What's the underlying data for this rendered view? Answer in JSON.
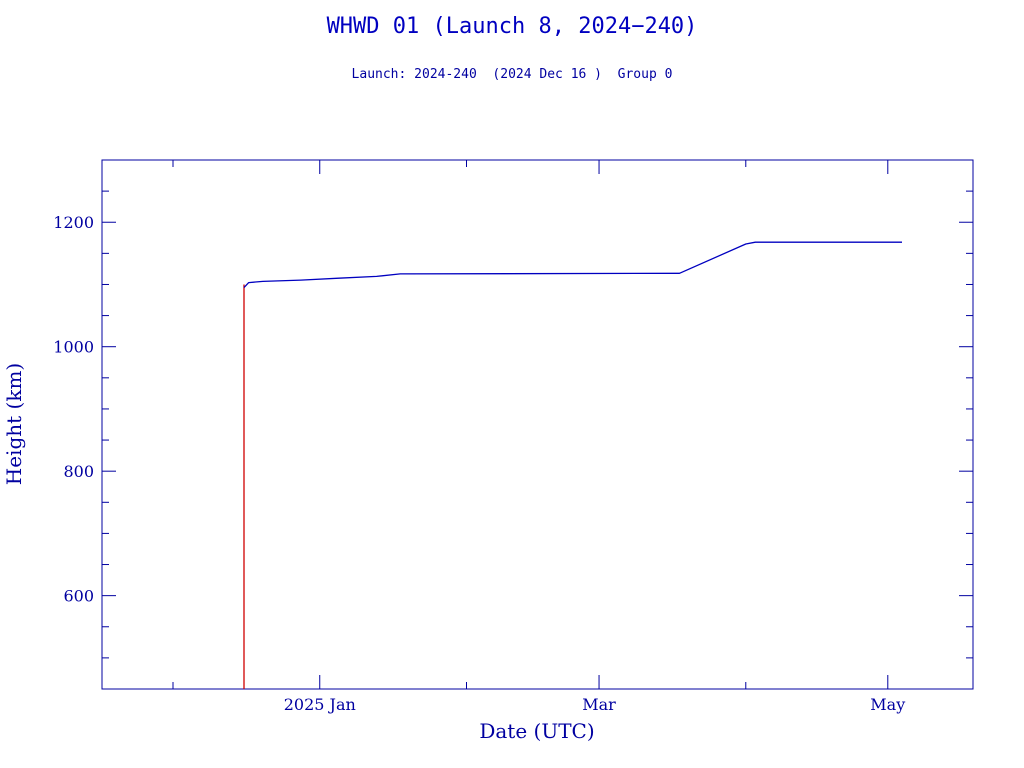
{
  "chart_data": {
    "type": "line",
    "title": "WHWD 01 (Launch 8, 2024−240)",
    "subtitle": "Launch: 2024-240  (2024 Dec 16 )  Group 0",
    "xlabel": "Date (UTC)",
    "ylabel": "Height (km)",
    "xlim": [
      "2024-11-16",
      "2025-05-19"
    ],
    "ylim": [
      450,
      1300
    ],
    "y_ticks": [
      600,
      800,
      1000,
      1200
    ],
    "x_ticks": [
      {
        "date": "2025-01-01",
        "label": "2025 Jan"
      },
      {
        "date": "2025-03-01",
        "label": "Mar"
      },
      {
        "date": "2025-05-01",
        "label": "May"
      }
    ],
    "grid": false,
    "series": [
      {
        "color": "#d00000",
        "points": [
          [
            "2024-12-16",
            450
          ],
          [
            "2024-12-16",
            1090
          ],
          [
            "2024-12-16",
            1100
          ]
        ]
      },
      {
        "color": "#0000c0",
        "points": [
          [
            "2024-12-16",
            1095
          ],
          [
            "2024-12-17",
            1103
          ],
          [
            "2024-12-20",
            1105
          ],
          [
            "2024-12-28",
            1107
          ],
          [
            "2025-01-05",
            1110
          ],
          [
            "2025-01-13",
            1113
          ],
          [
            "2025-01-18",
            1117
          ],
          [
            "2025-03-18",
            1118
          ],
          [
            "2025-04-01",
            1165
          ],
          [
            "2025-04-03",
            1168
          ],
          [
            "2025-05-04",
            1168
          ]
        ]
      }
    ]
  }
}
